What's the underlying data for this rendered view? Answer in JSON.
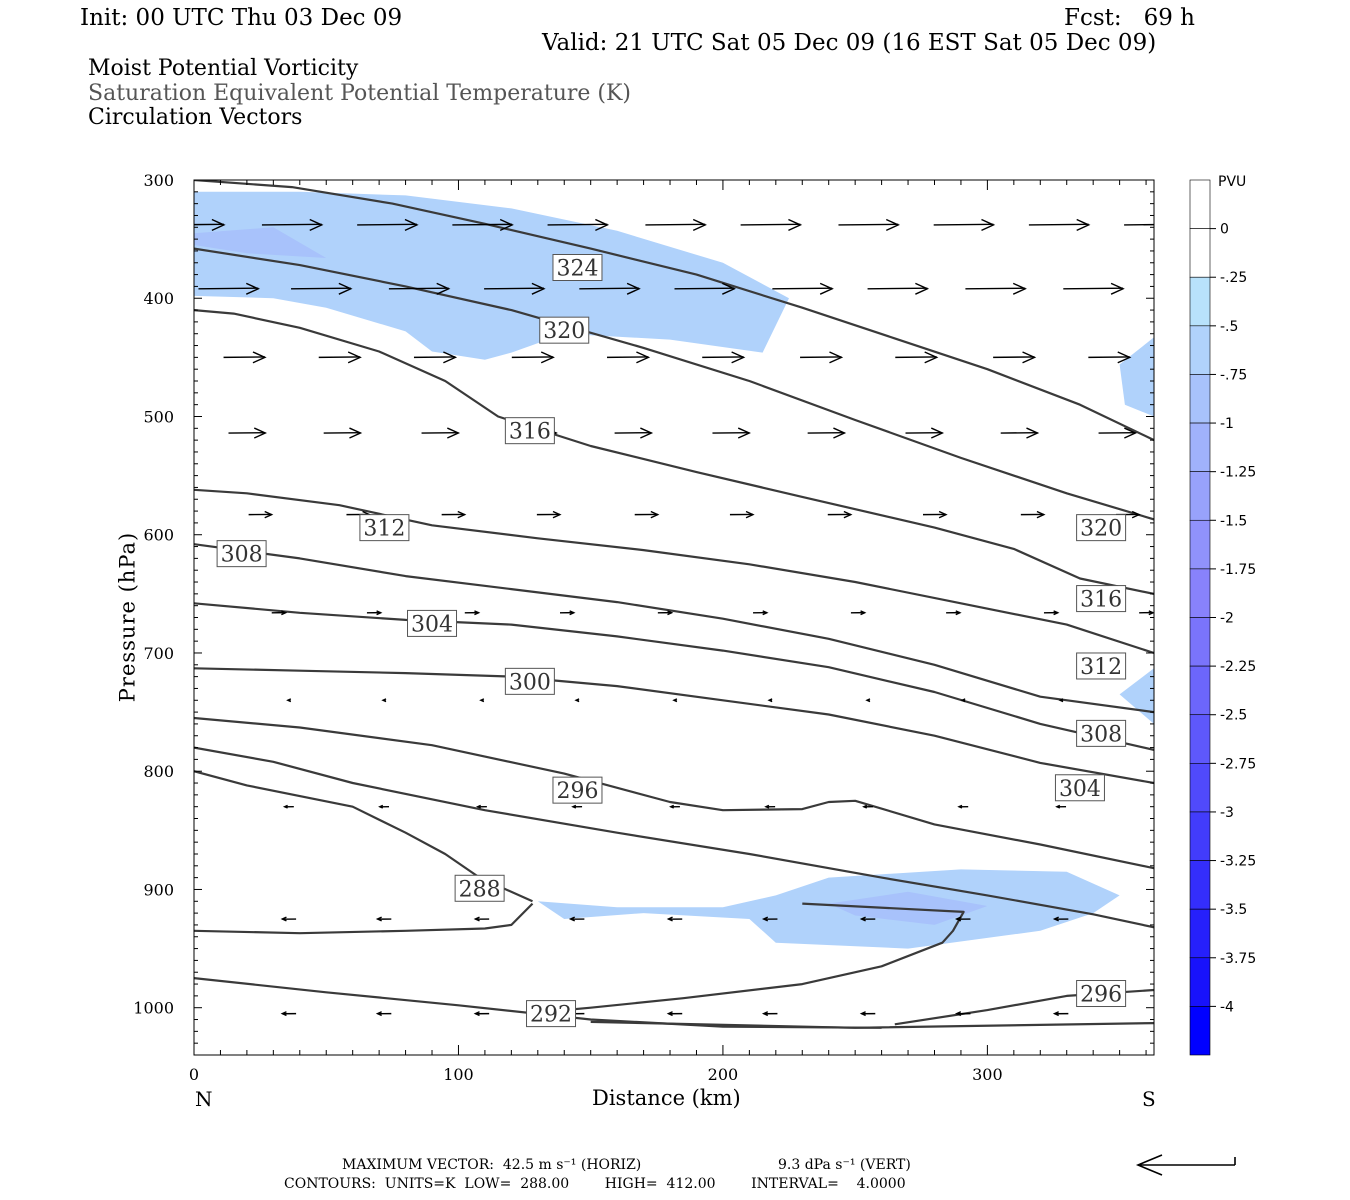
{
  "header": {
    "init": "Init: 00 UTC Thu 03 Dec 09",
    "fcst": "Fcst:   69 h",
    "valid": "Valid: 21 UTC Sat 05 Dec 09 (16 EST Sat 05 Dec 09)"
  },
  "fields": [
    {
      "label": "Moist Potential Vorticity",
      "color": "#000000"
    },
    {
      "label": "Saturation Equivalent Potential Temperature (K)",
      "color": "#555555"
    },
    {
      "label": "Circulation Vectors",
      "color": "#000000"
    }
  ],
  "chart_data": {
    "type": "cross-section",
    "xlabel": "Distance (km)",
    "ylabel": "Pressure (hPa)",
    "xlim": [
      0,
      363
    ],
    "ylim": [
      1040,
      300
    ],
    "x_ticks": [
      0,
      100,
      200,
      300
    ],
    "y_ticks": [
      300,
      400,
      500,
      600,
      700,
      800,
      900,
      1000
    ],
    "endpoint_labels": {
      "left": "N",
      "right": "S"
    },
    "colorbar": {
      "title": "PVU",
      "levels": [
        "0",
        "-.25",
        "-.5",
        "-.75",
        "-1",
        "-1.25",
        "-1.5",
        "-1.75",
        "-2",
        "-2.25",
        "-2.5",
        "-2.75",
        "-3",
        "-3.25",
        "-3.5",
        "-3.75",
        "-4"
      ],
      "colors": [
        "#ffffff",
        "#ffffff",
        "#b8e2fb",
        "#b0d2fb",
        "#a8c2fb",
        "#a0b2fb",
        "#98a2fb",
        "#9092fb",
        "#8882fb",
        "#7a74fb",
        "#6c66fb",
        "#5e58fb",
        "#504afb",
        "#423cfb",
        "#342efb",
        "#2620fb",
        "#1812fb",
        "#0000ff"
      ]
    },
    "contours": [
      {
        "label": "324",
        "label_x": 145,
        "label_p": 374,
        "points": [
          [
            0,
            300
          ],
          [
            37,
            306
          ],
          [
            75,
            320
          ],
          [
            110,
            337
          ],
          [
            150,
            358
          ],
          [
            190,
            380
          ],
          [
            230,
            408
          ],
          [
            265,
            434
          ],
          [
            300,
            460
          ],
          [
            335,
            490
          ],
          [
            363,
            520
          ]
        ]
      },
      {
        "label": "320",
        "label_x": 140,
        "label_p": 427,
        "points": [
          [
            0,
            358
          ],
          [
            40,
            372
          ],
          [
            80,
            390
          ],
          [
            120,
            410
          ],
          [
            170,
            442
          ],
          [
            210,
            470
          ],
          [
            250,
            503
          ],
          [
            290,
            535
          ],
          [
            330,
            565
          ],
          [
            363,
            587
          ]
        ]
      },
      {
        "label": "320",
        "label_x": 343,
        "label_p": 594,
        "points": []
      },
      {
        "label": "316",
        "label_x": 127,
        "label_p": 512,
        "points": [
          [
            0,
            410
          ],
          [
            15,
            413
          ],
          [
            40,
            425
          ],
          [
            70,
            445
          ],
          [
            95,
            470
          ],
          [
            115,
            500
          ],
          [
            150,
            525
          ],
          [
            190,
            547
          ],
          [
            230,
            568
          ],
          [
            280,
            594
          ],
          [
            310,
            612
          ],
          [
            335,
            637
          ],
          [
            363,
            650
          ]
        ]
      },
      {
        "label": "316",
        "label_x": 343,
        "label_p": 654,
        "points": []
      },
      {
        "label": "312",
        "label_x": 72,
        "label_p": 594,
        "points": [
          [
            0,
            562
          ],
          [
            20,
            565
          ],
          [
            55,
            575
          ],
          [
            90,
            592
          ],
          [
            130,
            603
          ],
          [
            170,
            613
          ],
          [
            210,
            625
          ],
          [
            250,
            640
          ],
          [
            290,
            658
          ],
          [
            330,
            676
          ],
          [
            363,
            700
          ]
        ]
      },
      {
        "label": "312",
        "label_x": 343,
        "label_p": 711,
        "points": []
      },
      {
        "label": "308",
        "label_x": 18,
        "label_p": 616,
        "points": [
          [
            0,
            608
          ],
          [
            40,
            620
          ],
          [
            80,
            635
          ],
          [
            120,
            646
          ],
          [
            160,
            657
          ],
          [
            200,
            671
          ],
          [
            240,
            688
          ],
          [
            280,
            710
          ],
          [
            320,
            737
          ],
          [
            363,
            750
          ]
        ]
      },
      {
        "label": "308",
        "label_x": 343,
        "label_p": 768,
        "points": []
      },
      {
        "label": "304",
        "label_x": 90,
        "label_p": 675,
        "points": [
          [
            0,
            658
          ],
          [
            40,
            666
          ],
          [
            80,
            672
          ],
          [
            120,
            676
          ],
          [
            160,
            686
          ],
          [
            200,
            698
          ],
          [
            240,
            712
          ],
          [
            280,
            733
          ],
          [
            320,
            760
          ],
          [
            363,
            782
          ]
        ]
      },
      {
        "label": "304",
        "label_x": 335,
        "label_p": 814,
        "points": []
      },
      {
        "label": "300",
        "label_x": 127,
        "label_p": 724,
        "points": [
          [
            0,
            713
          ],
          [
            40,
            715
          ],
          [
            80,
            717
          ],
          [
            120,
            720
          ],
          [
            160,
            728
          ],
          [
            200,
            740
          ],
          [
            240,
            752
          ],
          [
            280,
            770
          ],
          [
            320,
            793
          ],
          [
            363,
            810
          ]
        ]
      },
      {
        "label": "296",
        "label_x": 145,
        "label_p": 816,
        "points": [
          [
            0,
            755
          ],
          [
            40,
            763
          ],
          [
            90,
            778
          ],
          [
            140,
            802
          ],
          [
            180,
            826
          ],
          [
            200,
            833
          ],
          [
            230,
            832
          ],
          [
            240,
            826
          ],
          [
            250,
            825
          ],
          [
            280,
            845
          ],
          [
            320,
            862
          ],
          [
            363,
            882
          ]
        ]
      },
      {
        "label": "296",
        "label_x": 343,
        "label_p": 988,
        "points": [
          [
            0,
            780
          ],
          [
            30,
            792
          ],
          [
            60,
            810
          ],
          [
            110,
            833
          ],
          [
            160,
            852
          ],
          [
            210,
            870
          ],
          [
            260,
            890
          ],
          [
            300,
            905
          ],
          [
            340,
            921
          ],
          [
            363,
            932
          ]
        ]
      },
      {
        "label": "288",
        "label_x": 108,
        "label_p": 899,
        "points": [
          [
            0,
            800
          ],
          [
            20,
            812
          ],
          [
            60,
            830
          ],
          [
            80,
            852
          ],
          [
            95,
            870
          ],
          [
            108,
            890
          ],
          [
            128,
            910
          ]
        ]
      },
      {
        "label": "",
        "label_x": 0,
        "label_p": 0,
        "points": [
          [
            0,
            935
          ],
          [
            40,
            937
          ],
          [
            80,
            935
          ],
          [
            110,
            933
          ],
          [
            120,
            930
          ],
          [
            128,
            912
          ]
        ]
      },
      {
        "label": "",
        "label_x": 0,
        "label_p": 0,
        "points": [
          [
            230,
            912
          ],
          [
            291,
            919
          ],
          [
            287,
            935
          ],
          [
            283,
            945
          ],
          [
            260,
            965
          ],
          [
            230,
            980
          ],
          [
            185,
            992
          ],
          [
            150,
            1000
          ],
          [
            140,
            1002
          ]
        ]
      },
      {
        "label": "292",
        "label_x": 135,
        "label_p": 1005,
        "points": [
          [
            0,
            975
          ],
          [
            50,
            987
          ],
          [
            100,
            998
          ],
          [
            150,
            1010
          ],
          [
            200,
            1016
          ],
          [
            260,
            1017
          ]
        ]
      },
      {
        "label": "",
        "label_x": 0,
        "label_p": 0,
        "points": [
          [
            265,
            1014
          ],
          [
            300,
            1002
          ],
          [
            330,
            990
          ],
          [
            363,
            985
          ]
        ]
      },
      {
        "label": "",
        "label_x": 0,
        "label_p": 0,
        "points": [
          [
            150,
            1012
          ],
          [
            250,
            1017
          ],
          [
            363,
            1013
          ]
        ]
      }
    ],
    "pv_regions": [
      {
        "value": -0.5,
        "points": [
          [
            0,
            310
          ],
          [
            40,
            310
          ],
          [
            80,
            313
          ],
          [
            120,
            324
          ],
          [
            160,
            343
          ],
          [
            200,
            370
          ],
          [
            225,
            400
          ],
          [
            215,
            446
          ],
          [
            180,
            435
          ],
          [
            140,
            430
          ],
          [
            120,
            446
          ],
          [
            110,
            452
          ],
          [
            90,
            445
          ],
          [
            80,
            428
          ],
          [
            50,
            408
          ],
          [
            30,
            400
          ],
          [
            0,
            398
          ]
        ]
      },
      {
        "value": -0.75,
        "points": [
          [
            0,
            345
          ],
          [
            30,
            340
          ],
          [
            50,
            366
          ],
          [
            20,
            362
          ],
          [
            0,
            355
          ]
        ]
      },
      {
        "value": -0.5,
        "points": [
          [
            363,
            433
          ],
          [
            350,
            456
          ],
          [
            352,
            490
          ],
          [
            363,
            500
          ]
        ]
      },
      {
        "value": -0.5,
        "points": [
          [
            363,
            713
          ],
          [
            350,
            735
          ],
          [
            363,
            760
          ]
        ]
      },
      {
        "value": -0.5,
        "points": [
          [
            130,
            910
          ],
          [
            160,
            915
          ],
          [
            200,
            915
          ],
          [
            220,
            905
          ],
          [
            240,
            890
          ],
          [
            290,
            883
          ],
          [
            330,
            885
          ],
          [
            350,
            905
          ],
          [
            340,
            920
          ],
          [
            320,
            935
          ],
          [
            270,
            950
          ],
          [
            220,
            945
          ],
          [
            210,
            925
          ],
          [
            170,
            920
          ],
          [
            140,
            925
          ]
        ]
      },
      {
        "value": -0.75,
        "points": [
          [
            240,
            912
          ],
          [
            270,
            902
          ],
          [
            300,
            914
          ],
          [
            280,
            930
          ],
          [
            250,
            922
          ]
        ]
      }
    ],
    "vectors": {
      "maximum_horiz": "MAXIMUM VECTOR:  42.5 m s⁻¹ (HORIZ)",
      "maximum_vert": "9.3 dPa s⁻¹ (VERT)",
      "rows": [
        {
          "p": 338,
          "u": -13,
          "x": [
            0,
            37,
            73,
            109,
            145,
            182,
            218,
            255,
            291,
            327,
            363
          ]
        },
        {
          "p": 392,
          "u": -13,
          "x": [
            13,
            48,
            85,
            121,
            157,
            193,
            230,
            266,
            303,
            340
          ]
        },
        {
          "p": 450,
          "u": -9,
          "x": [
            19,
            55,
            91,
            128,
            164,
            200,
            237,
            273,
            310,
            346
          ]
        },
        {
          "p": 514,
          "u": -8,
          "x": [
            20,
            56,
            93,
            130,
            166,
            203,
            239,
            276,
            312,
            349
          ]
        },
        {
          "p": 583,
          "u": -5,
          "x": [
            25,
            62,
            98,
            134,
            171,
            207,
            244,
            280,
            317,
            353
          ]
        },
        {
          "p": 666,
          "u": -3,
          "x": [
            32,
            68,
            105,
            141,
            178,
            214,
            251,
            287,
            324,
            360
          ]
        },
        {
          "p": 740,
          "u": 0.6,
          "x": [
            36,
            72,
            109,
            145,
            182,
            218,
            255,
            291,
            328
          ]
        },
        {
          "p": 830,
          "u": 2,
          "x": [
            36,
            72,
            109,
            145,
            182,
            218,
            255,
            291,
            328
          ]
        },
        {
          "p": 925,
          "u": 3,
          "x": [
            36,
            72,
            109,
            145,
            182,
            218,
            255,
            291,
            328
          ]
        },
        {
          "p": 1005,
          "u": 3,
          "x": [
            36,
            72,
            109,
            145,
            182,
            218,
            255,
            291,
            328
          ]
        }
      ]
    }
  },
  "footer": {
    "contours": "CONTOURS:  UNITS=K  LOW=  288.00        HIGH=  412.00        INTERVAL=    4.0000"
  }
}
